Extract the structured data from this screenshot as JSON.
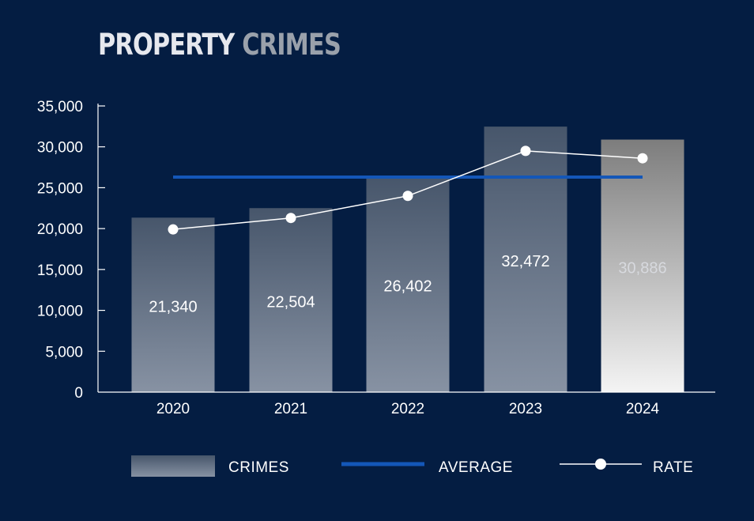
{
  "title": {
    "word1": "PROPERTY",
    "word2": "CRIMES"
  },
  "colors": {
    "background": "#041d42",
    "axis": "#ffffff",
    "average_line": "#1457b8",
    "rate_line": "#ffffff",
    "bar_gradient_top": "#47566b",
    "bar_gradient_bottom": "#8792a3",
    "highlight_gradient_top": "#7d7d7d",
    "highlight_gradient_bottom": "#f4f4f4"
  },
  "legend": {
    "crimes_label": "CRIMES",
    "average_label": "AVERAGE",
    "rate_label": "RATE"
  },
  "chart_data": {
    "type": "bar",
    "title": "PROPERTY CRIMES",
    "categories": [
      "2020",
      "2021",
      "2022",
      "2023",
      "2024"
    ],
    "series": [
      {
        "name": "CRIMES",
        "type": "bar",
        "values": [
          21340,
          22504,
          26402,
          32472,
          30886
        ]
      },
      {
        "name": "AVERAGE",
        "type": "line",
        "values": [
          26300,
          26300,
          26300,
          26300,
          26300
        ]
      },
      {
        "name": "RATE",
        "type": "line",
        "values": [
          19900,
          21300,
          24000,
          29500,
          28600
        ]
      }
    ],
    "data_labels": [
      "21,340",
      "22,504",
      "26,402",
      "32,472",
      "30,886"
    ],
    "y_ticks": [
      "0",
      "5,000",
      "10,000",
      "15,000",
      "20,000",
      "25,000",
      "30,000",
      "35,000"
    ],
    "ylim": [
      0,
      35000
    ],
    "highlighted_category": "2024",
    "grid": false,
    "legend_position": "bottom"
  }
}
